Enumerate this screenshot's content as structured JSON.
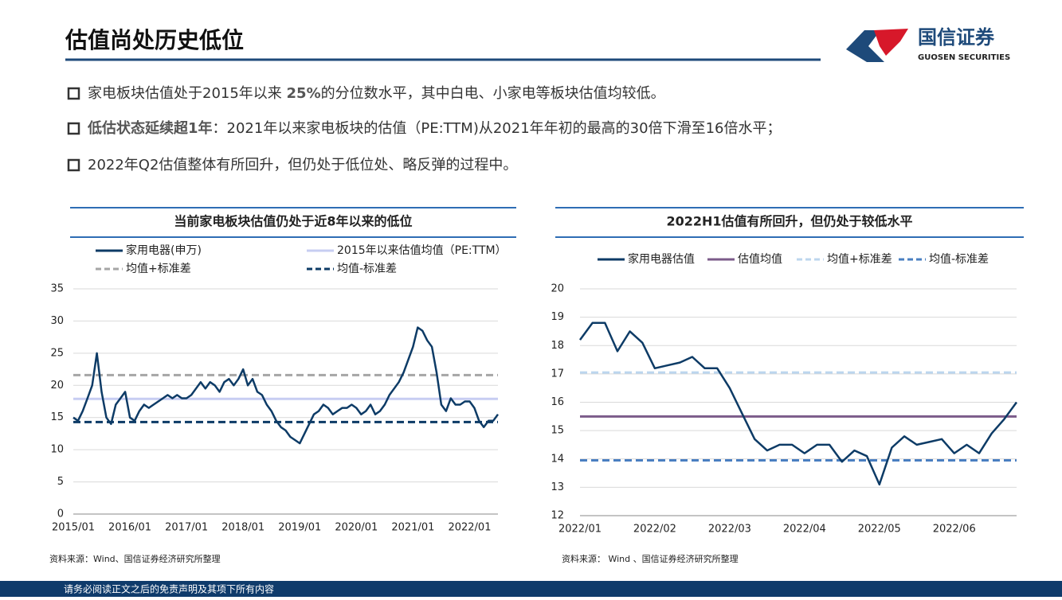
{
  "header": {
    "title": "估值尚处历史低位",
    "logo_cn": "国信证券",
    "logo_en": "GUOSEN SECURITIES"
  },
  "bullets": [
    [
      "家电板块估值处于2015年以来 ",
      "25%",
      "的分位数水平，其中白电、小家电等板块估值均较低。"
    ],
    [
      "低估状态延续超1年",
      "：2021年以来家电板块的估值（PE:TTM)从2021年年初的最高的30倍下滑至16倍水平；"
    ],
    [
      "2022年Q2估值整体有所回升，但仍处于低位处、略反弹的过程中。"
    ]
  ],
  "footer": "请务必阅读正文之后的免责声明及其项下所有内容",
  "chart_data": [
    {
      "type": "line",
      "title": "当前家电板块估值仍处于近8年以来的低位",
      "source": "资料来源：Wind、国信证券经济研究所整理",
      "categories": [
        "2015/01",
        null,
        null,
        null,
        null,
        null,
        null,
        null,
        null,
        null,
        null,
        null,
        "2016/01",
        null,
        null,
        null,
        null,
        null,
        null,
        null,
        null,
        null,
        null,
        null,
        "2017/01",
        null,
        null,
        null,
        null,
        null,
        null,
        null,
        null,
        null,
        null,
        null,
        "2018/01",
        null,
        null,
        null,
        null,
        null,
        null,
        null,
        null,
        null,
        null,
        null,
        "2019/01",
        null,
        null,
        null,
        null,
        null,
        null,
        null,
        null,
        null,
        null,
        null,
        "2020/01",
        null,
        null,
        null,
        null,
        null,
        null,
        null,
        null,
        null,
        null,
        null,
        "2021/01",
        null,
        null,
        null,
        null,
        null,
        null,
        null,
        null,
        null,
        null,
        null,
        "2022/01",
        null,
        null,
        null,
        null,
        null,
        null
      ],
      "series": [
        {
          "name": "家用电器(申万)",
          "color": "#0d3b66",
          "values": [
            15,
            14.5,
            16,
            18,
            20,
            25,
            19,
            15,
            14,
            17,
            18,
            19,
            15,
            14.5,
            16,
            17,
            16.5,
            17,
            17.5,
            18,
            18.5,
            18,
            18.5,
            18,
            18,
            18.5,
            19.5,
            20.5,
            19.5,
            20.5,
            20,
            19,
            20.5,
            21,
            20,
            21,
            22.5,
            20,
            21,
            19,
            18.5,
            17,
            16,
            14.5,
            13.5,
            13,
            12,
            11.5,
            11,
            12.5,
            14,
            15.5,
            16,
            17,
            16.5,
            15.5,
            16,
            16.5,
            16.5,
            17,
            16.5,
            15.5,
            16,
            17,
            15.5,
            16,
            17,
            18.5,
            19.5,
            20.5,
            22,
            24,
            26,
            29,
            28.5,
            27,
            26,
            22,
            17,
            16,
            18,
            17,
            17,
            17.5,
            17.5,
            16.5,
            14.5,
            13.5,
            14.5,
            14.5,
            15.5
          ]
        }
      ],
      "reference_lines": [
        {
          "name": "2015年以来估值均值（PE:TTM）",
          "color": "#c7cdf2",
          "dash": false,
          "value": 17.9
        },
        {
          "name": "均值+标准差",
          "color": "#a6a6a6",
          "dash": true,
          "value": 21.6
        },
        {
          "name": "均值-标准差",
          "color": "#0d3b66",
          "dash": true,
          "value": 14.3
        }
      ],
      "ylim": [
        0,
        35
      ],
      "yticks": [
        0,
        5,
        10,
        15,
        20,
        25,
        30,
        35
      ],
      "grid": true
    },
    {
      "type": "line",
      "title": "2022H1估值有所回升，但仍处于较低水平",
      "source": "资料来源： Wind 、国信证券经济研究所整理",
      "categories": [
        "2022/01",
        null,
        null,
        null,
        null,
        null,
        "2022/02",
        null,
        null,
        null,
        null,
        null,
        "2022/03",
        null,
        null,
        null,
        null,
        null,
        "2022/04",
        null,
        null,
        null,
        null,
        null,
        "2022/05",
        null,
        null,
        null,
        null,
        null,
        "2022/06",
        null,
        null,
        null,
        null,
        null
      ],
      "series": [
        {
          "name": "家用电器估值",
          "color": "#0d3b66",
          "values": [
            18.2,
            18.8,
            18.8,
            17.8,
            18.5,
            18.1,
            17.2,
            17.3,
            17.4,
            17.6,
            17.2,
            17.2,
            16.5,
            15.6,
            14.7,
            14.3,
            14.5,
            14.5,
            14.2,
            14.5,
            14.5,
            13.9,
            14.3,
            14.1,
            13.1,
            14.4,
            14.8,
            14.5,
            14.6,
            14.7,
            14.2,
            14.5,
            14.2,
            14.9,
            15.4,
            16
          ]
        }
      ],
      "reference_lines": [
        {
          "name": "估值均值",
          "color": "#7b5b8a",
          "dash": false,
          "value": 15.5
        },
        {
          "name": "均值+标准差",
          "color": "#bcd6ee",
          "dash": true,
          "value": 17.05
        },
        {
          "name": "均值-标准差",
          "color": "#4a7fc1",
          "dash": true,
          "value": 13.95
        }
      ],
      "ylim": [
        12,
        20
      ],
      "yticks": [
        12,
        13,
        14,
        15,
        16,
        17,
        18,
        19,
        20
      ],
      "grid": true
    }
  ]
}
